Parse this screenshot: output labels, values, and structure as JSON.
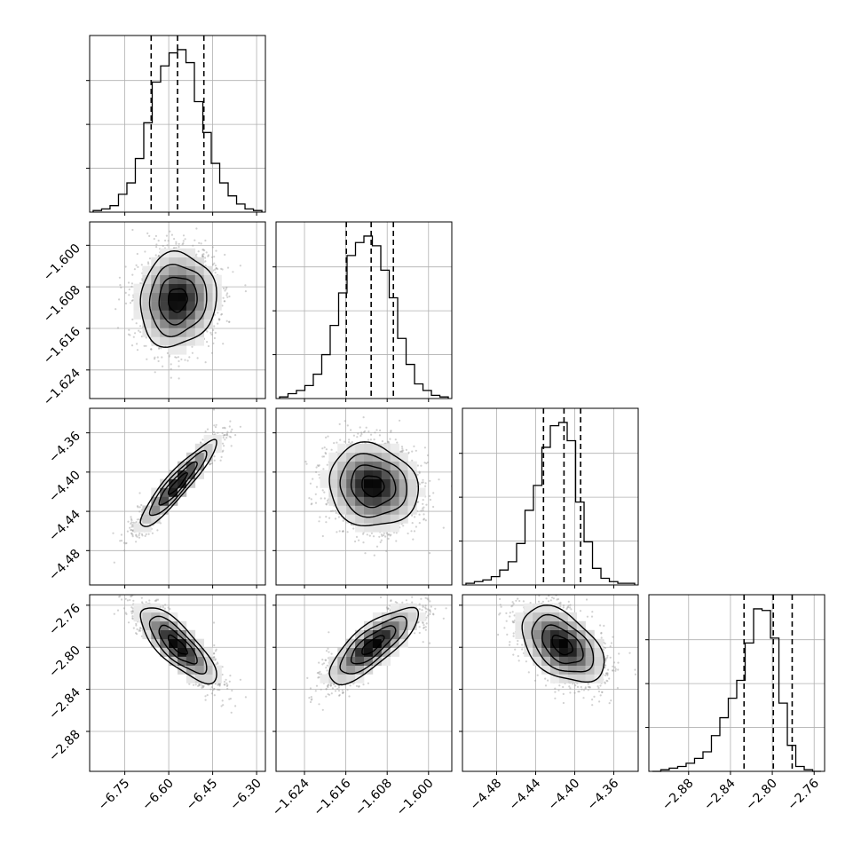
{
  "chart_data": {
    "type": "corner",
    "n_params": 4,
    "grid": true,
    "params": [
      {
        "ticks": [
          -6.75,
          -6.6,
          -6.45,
          -6.3
        ],
        "tick_labels": [
          "−6.75",
          "−6.60",
          "−6.45",
          "−6.30"
        ],
        "range": [
          -6.87,
          -6.27
        ],
        "quantiles": [
          -6.66,
          -6.57,
          -6.48
        ],
        "hist": [
          0.01,
          0.02,
          0.04,
          0.11,
          0.18,
          0.33,
          0.55,
          0.8,
          0.9,
          0.98,
          1.0,
          0.92,
          0.68,
          0.49,
          0.3,
          0.18,
          0.1,
          0.05,
          0.02,
          0.01
        ]
      },
      {
        "ticks": [
          -1.624,
          -1.616,
          -1.608,
          -1.6
        ],
        "tick_labels": [
          "−1.624",
          "−1.616",
          "−1.608",
          "−1.600"
        ],
        "range": [
          -1.6295,
          -1.5955
        ],
        "quantiles": [
          -1.6159,
          -1.6111,
          -1.6068
        ],
        "hist": [
          0.01,
          0.03,
          0.05,
          0.08,
          0.15,
          0.27,
          0.45,
          0.65,
          0.88,
          0.96,
          1.0,
          0.94,
          0.79,
          0.62,
          0.37,
          0.21,
          0.09,
          0.05,
          0.02,
          0.01
        ]
      },
      {
        "ticks": [
          -4.48,
          -4.44,
          -4.4,
          -4.36
        ],
        "tick_labels": [
          "−4.48",
          "−4.44",
          "−4.40",
          "−4.36"
        ],
        "range": [
          -4.515,
          -4.335
        ],
        "quantiles": [
          -4.432,
          -4.411,
          -4.394
        ],
        "hist": [
          0.01,
          0.02,
          0.03,
          0.05,
          0.09,
          0.14,
          0.25,
          0.45,
          0.6,
          0.83,
          0.96,
          0.98,
          0.87,
          0.5,
          0.26,
          0.1,
          0.04,
          0.02,
          0.01,
          0.01
        ]
      },
      {
        "ticks": [
          -2.88,
          -2.84,
          -2.8,
          -2.76
        ],
        "tick_labels": [
          "−2.88",
          "−2.84",
          "−2.80",
          "−2.76"
        ],
        "range": [
          -2.918,
          -2.75
        ],
        "quantiles": [
          -2.827,
          -2.799,
          -2.781
        ],
        "hist": [
          0.0,
          0.01,
          0.02,
          0.03,
          0.05,
          0.08,
          0.12,
          0.22,
          0.33,
          0.45,
          0.56,
          0.79,
          1.0,
          0.99,
          0.82,
          0.42,
          0.16,
          0.03,
          0.01,
          0.0
        ]
      }
    ],
    "pairs": [
      {
        "x": 0,
        "y": 1,
        "mean": [
          -6.57,
          -1.6105
        ],
        "sd": [
          0.065,
          0.0045
        ],
        "rho": 0.08
      },
      {
        "x": 0,
        "y": 2,
        "mean": [
          -6.57,
          -4.412
        ],
        "sd": [
          0.065,
          0.022
        ],
        "rho": 0.92
      },
      {
        "x": 1,
        "y": 2,
        "mean": [
          -1.6108,
          -4.414
        ],
        "sd": [
          0.0043,
          0.021
        ],
        "rho": -0.1
      },
      {
        "x": 0,
        "y": 3,
        "mean": [
          -6.57,
          -2.798
        ],
        "sd": [
          0.065,
          0.018
        ],
        "rho": -0.78
      },
      {
        "x": 1,
        "y": 3,
        "mean": [
          -1.6108,
          -2.798
        ],
        "sd": [
          0.0043,
          0.018
        ],
        "rho": 0.78
      },
      {
        "x": 2,
        "y": 3,
        "mean": [
          -4.413,
          -2.798
        ],
        "sd": [
          0.021,
          0.018
        ],
        "rho": -0.45
      }
    ],
    "colors": {
      "line": "#000000",
      "points": "#9a9a9a",
      "grid": "#b0b0b0",
      "spine": "#000000"
    }
  }
}
